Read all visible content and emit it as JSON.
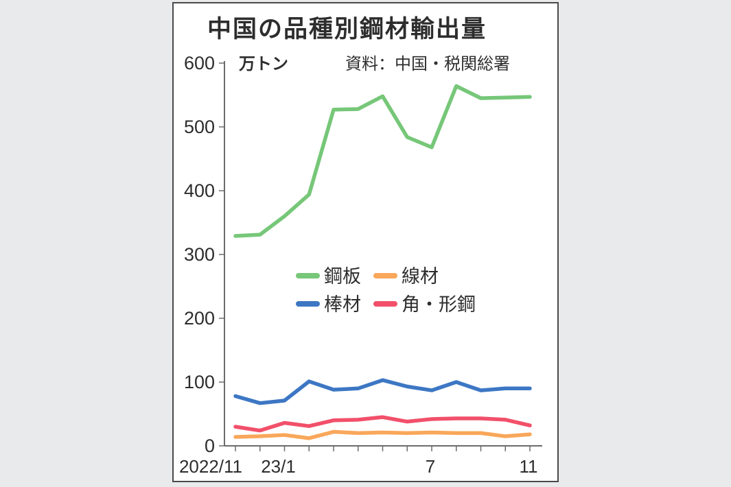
{
  "panel": {
    "title": "中国の品種別鋼材輸出量",
    "unit_label": "万トン",
    "source": "資料：中国・税関総署"
  },
  "chart_data": {
    "type": "line",
    "title": "中国の品種別鋼材輸出量",
    "ylabel": "万トン",
    "ylim": [
      0,
      600
    ],
    "y_ticks": [
      0,
      100,
      200,
      300,
      400,
      500,
      600
    ],
    "grid": false,
    "x_months": [
      "2022/11",
      "2022/12",
      "2023/1",
      "2023/2",
      "2023/3",
      "2023/4",
      "2023/5",
      "2023/6",
      "2023/7",
      "2023/8",
      "2023/9",
      "2023/10",
      "2023/11"
    ],
    "x_axis_labels": [
      {
        "text": "2022/11",
        "index": 0
      },
      {
        "text": "23/1",
        "index": 2
      },
      {
        "text": "7",
        "index": 8
      },
      {
        "text": "11",
        "index": 12
      }
    ],
    "series": [
      {
        "name": "鋼板",
        "color": "#76c778",
        "values": [
          329,
          331,
          360,
          394,
          527,
          528,
          548,
          484,
          468,
          564,
          545,
          546,
          547
        ]
      },
      {
        "name": "棒材",
        "color": "#3d77c4",
        "values": [
          78,
          67,
          71,
          101,
          88,
          90,
          103,
          93,
          87,
          100,
          87,
          90,
          90
        ]
      },
      {
        "name": "線材",
        "color": "#f9a75a",
        "values": [
          14,
          15,
          17,
          12,
          22,
          20,
          21,
          20,
          21,
          20,
          20,
          15,
          18
        ]
      },
      {
        "name": "角・形鋼",
        "color": "#f2506a",
        "values": [
          30,
          24,
          36,
          31,
          40,
          41,
          45,
          38,
          42,
          43,
          43,
          41,
          32
        ]
      }
    ],
    "legend": {
      "position": "center-middle",
      "order": [
        "鋼板",
        "線材",
        "棒材",
        "角・形鋼"
      ]
    },
    "source": "資料：中国・税関総署"
  },
  "colors": {
    "background": "#e9eaeb",
    "panel_border": "#494949",
    "axis": "#6b6b6b",
    "text": "#2d2d2d"
  }
}
